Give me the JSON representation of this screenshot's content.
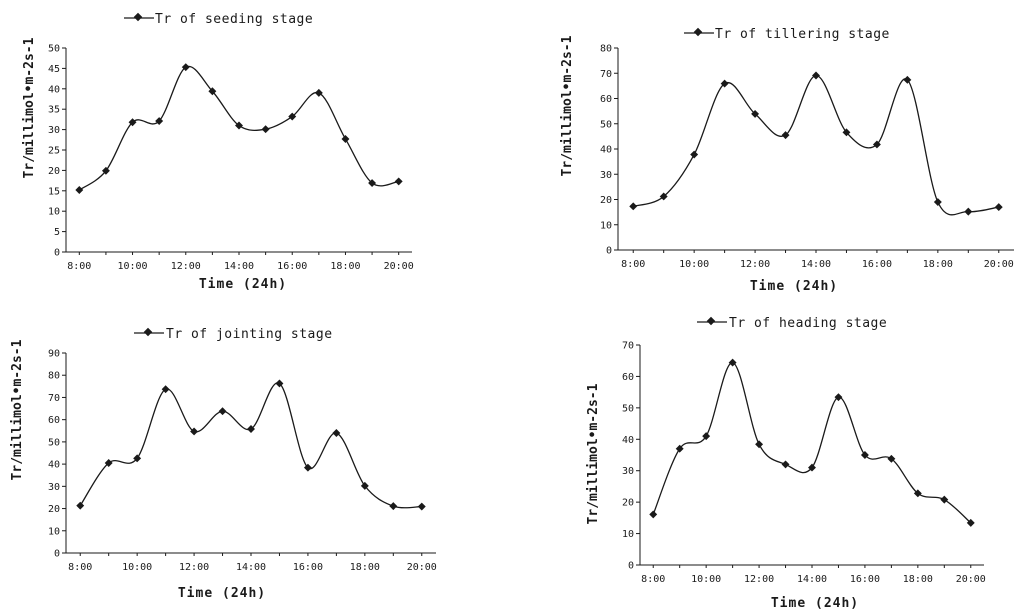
{
  "chart_data": [
    {
      "type": "line",
      "legend": "Tr of seeding stage",
      "xlabel": "Time (24h)",
      "ylabel": "Tr/millimol•m-2s-1",
      "x_tick_labels": [
        "8:00",
        "10:00",
        "12:00",
        "14:00",
        "16:00",
        "18:00",
        "20:00"
      ],
      "y_tick_labels": [
        "0",
        "5",
        "10",
        "15",
        "20",
        "25",
        "30",
        "35",
        "40",
        "45",
        "50"
      ],
      "ylim": [
        0,
        50
      ],
      "series": [
        {
          "x": [
            8,
            9,
            10,
            11,
            12,
            13,
            14,
            15,
            16,
            17,
            18,
            19,
            20
          ],
          "values": [
            15.2,
            19.9,
            31.8,
            32.1,
            45.3,
            39.4,
            31.0,
            30.1,
            33.2,
            39.0,
            27.7,
            16.9,
            17.3
          ]
        }
      ],
      "smooth": true,
      "marker": "diamond",
      "line_color": "#1a1a1a",
      "grid": false
    },
    {
      "type": "line",
      "legend": "Tr of tillering stage",
      "xlabel": "Time (24h)",
      "ylabel": "Tr/millimol•m-2s-1",
      "x_tick_labels": [
        "8:00",
        "10:00",
        "12:00",
        "14:00",
        "16:00",
        "18:00",
        "20:00"
      ],
      "y_tick_labels": [
        "0",
        "10",
        "20",
        "30",
        "40",
        "50",
        "60",
        "70",
        "80"
      ],
      "ylim": [
        0,
        80
      ],
      "series": [
        {
          "x": [
            8,
            9,
            10,
            11,
            12,
            13,
            14,
            15,
            16,
            17,
            18,
            19,
            20
          ],
          "values": [
            17.3,
            21.2,
            37.8,
            65.9,
            53.9,
            45.5,
            69.1,
            46.6,
            41.8,
            67.4,
            19.0,
            15.2,
            17.0
          ]
        }
      ],
      "smooth": true,
      "marker": "diamond",
      "line_color": "#1a1a1a",
      "grid": false
    },
    {
      "type": "line",
      "legend": "Tr of jointing stage",
      "xlabel": "Time (24h)",
      "ylabel": "Tr/millimol•m-2s-1",
      "x_tick_labels": [
        "8:00",
        "10:00",
        "12:00",
        "14:00",
        "16:00",
        "18:00",
        "20:00"
      ],
      "y_tick_labels": [
        "0",
        "10",
        "20",
        "30",
        "40",
        "50",
        "60",
        "70",
        "80",
        "90"
      ],
      "ylim": [
        0,
        90
      ],
      "series": [
        {
          "x": [
            8,
            9,
            10,
            11,
            12,
            13,
            14,
            15,
            16,
            17,
            18,
            19,
            20
          ],
          "values": [
            21.3,
            40.5,
            42.6,
            73.7,
            54.7,
            63.8,
            55.8,
            76.3,
            38.4,
            54.0,
            30.2,
            21.1,
            20.9
          ]
        }
      ],
      "smooth": true,
      "marker": "diamond",
      "line_color": "#1a1a1a",
      "grid": false
    },
    {
      "type": "line",
      "legend": "Tr of heading stage",
      "xlabel": "Time (24h)",
      "ylabel": "Tr/millimol•m-2s-1",
      "x_tick_labels": [
        "8:00",
        "10:00",
        "12:00",
        "14:00",
        "16:00",
        "18:00",
        "20:00"
      ],
      "y_tick_labels": [
        "0",
        "10",
        "20",
        "30",
        "40",
        "50",
        "60",
        "70"
      ],
      "ylim": [
        0,
        70
      ],
      "series": [
        {
          "x": [
            8,
            9,
            10,
            11,
            12,
            13,
            14,
            15,
            16,
            17,
            18,
            19,
            20
          ],
          "values": [
            16.1,
            37.0,
            41.0,
            64.4,
            38.4,
            32.0,
            31.0,
            53.4,
            35.0,
            33.8,
            22.8,
            20.8,
            13.4
          ]
        }
      ],
      "smooth": true,
      "marker": "diamond",
      "line_color": "#1a1a1a",
      "grid": false
    }
  ]
}
